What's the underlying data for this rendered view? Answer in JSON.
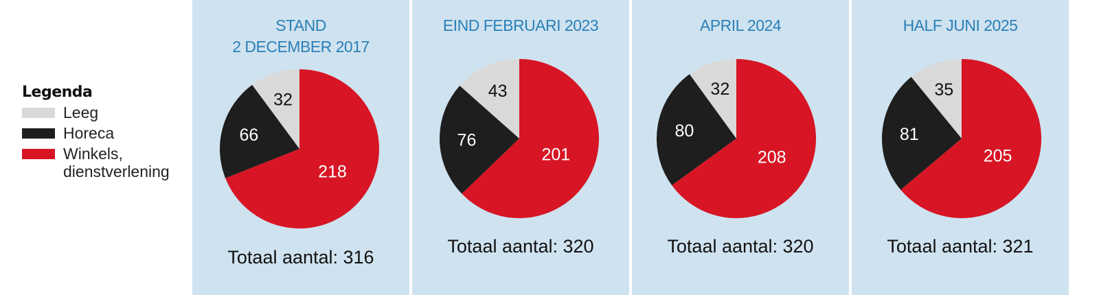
{
  "legend": {
    "title": "Legenda",
    "items": [
      {
        "key": "leeg",
        "label": "Leeg",
        "color": "#d9d9d9"
      },
      {
        "key": "horeca",
        "label": "Horeca",
        "color": "#1e1e1e"
      },
      {
        "key": "winkels",
        "label": "Winkels,\ndienstverlening",
        "color": "#d71524"
      }
    ]
  },
  "chart_data": [
    {
      "type": "pie",
      "title": "STAND\n2 DECEMBER 2017",
      "categories": [
        "Leeg",
        "Horeca",
        "Winkels, dienstverlening"
      ],
      "values": [
        32,
        66,
        218
      ],
      "total_label": "Totaal aantal: 316"
    },
    {
      "type": "pie",
      "title": "EIND FEBRUARI 2023",
      "categories": [
        "Leeg",
        "Horeca",
        "Winkels, dienstverlening"
      ],
      "values": [
        43,
        76,
        201
      ],
      "total_label": "Totaal aantal: 320"
    },
    {
      "type": "pie",
      "title": "APRIL 2024",
      "categories": [
        "Leeg",
        "Horeca",
        "Winkels, dienstverlening"
      ],
      "values": [
        32,
        80,
        208
      ],
      "total_label": "Totaal aantal: 320"
    },
    {
      "type": "pie",
      "title": "HALF JUNI 2025",
      "categories": [
        "Leeg",
        "Horeca",
        "Winkels, dienstverlening"
      ],
      "values": [
        35,
        81,
        205
      ],
      "total_label": "Totaal aantal: 321"
    }
  ],
  "colors": {
    "panel_bg": "#cfe2ef",
    "title": "#2a80b8",
    "leeg": "#d9d9d9",
    "horeca": "#1e1e1e",
    "winkels": "#d71524"
  }
}
